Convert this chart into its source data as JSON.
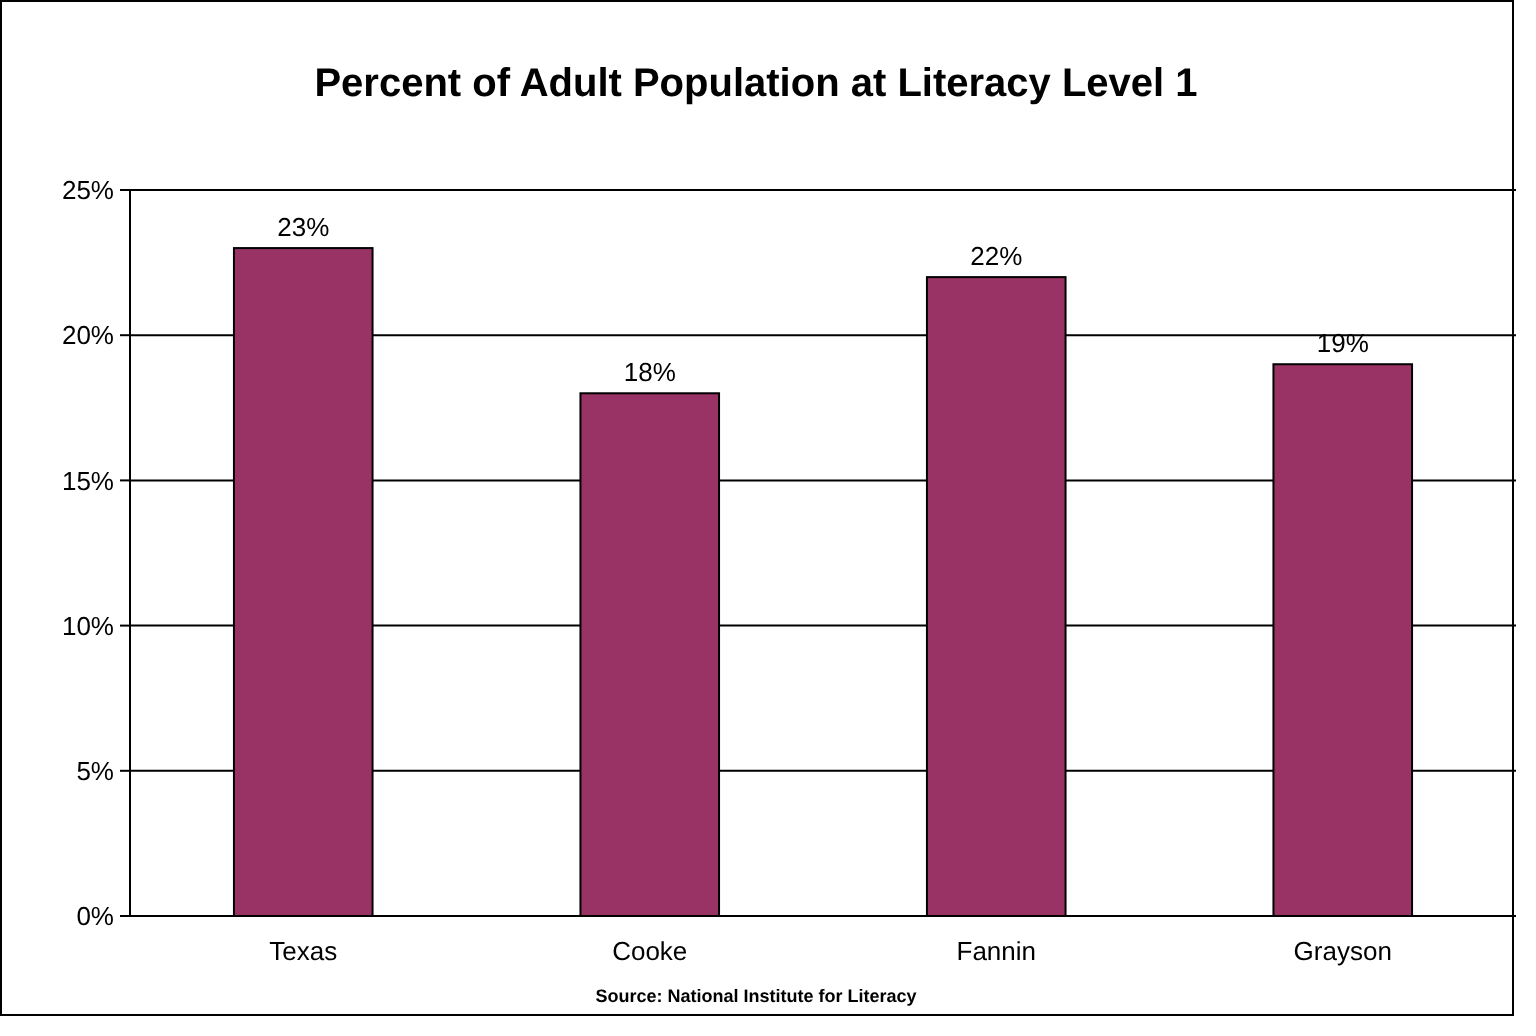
{
  "chart_data": {
    "type": "bar",
    "title": "Percent of Adult Population at Literacy Level 1",
    "categories": [
      "Texas",
      "Cooke",
      "Fannin",
      "Grayson"
    ],
    "values": [
      23,
      18,
      22,
      19
    ],
    "color": "#993366",
    "value_labels": [
      "23%",
      "18%",
      "22%",
      "19%"
    ],
    "ylim": [
      0,
      25
    ],
    "yticks": [
      {
        "value": 0,
        "label": "0%"
      },
      {
        "value": 5,
        "label": "5%"
      },
      {
        "value": 10,
        "label": "10%"
      },
      {
        "value": 15,
        "label": "15%"
      },
      {
        "value": 20,
        "label": "20%"
      },
      {
        "value": 25,
        "label": "25%"
      }
    ],
    "grid": "y",
    "annotations": [
      "Source: National Institute for Literacy"
    ]
  }
}
